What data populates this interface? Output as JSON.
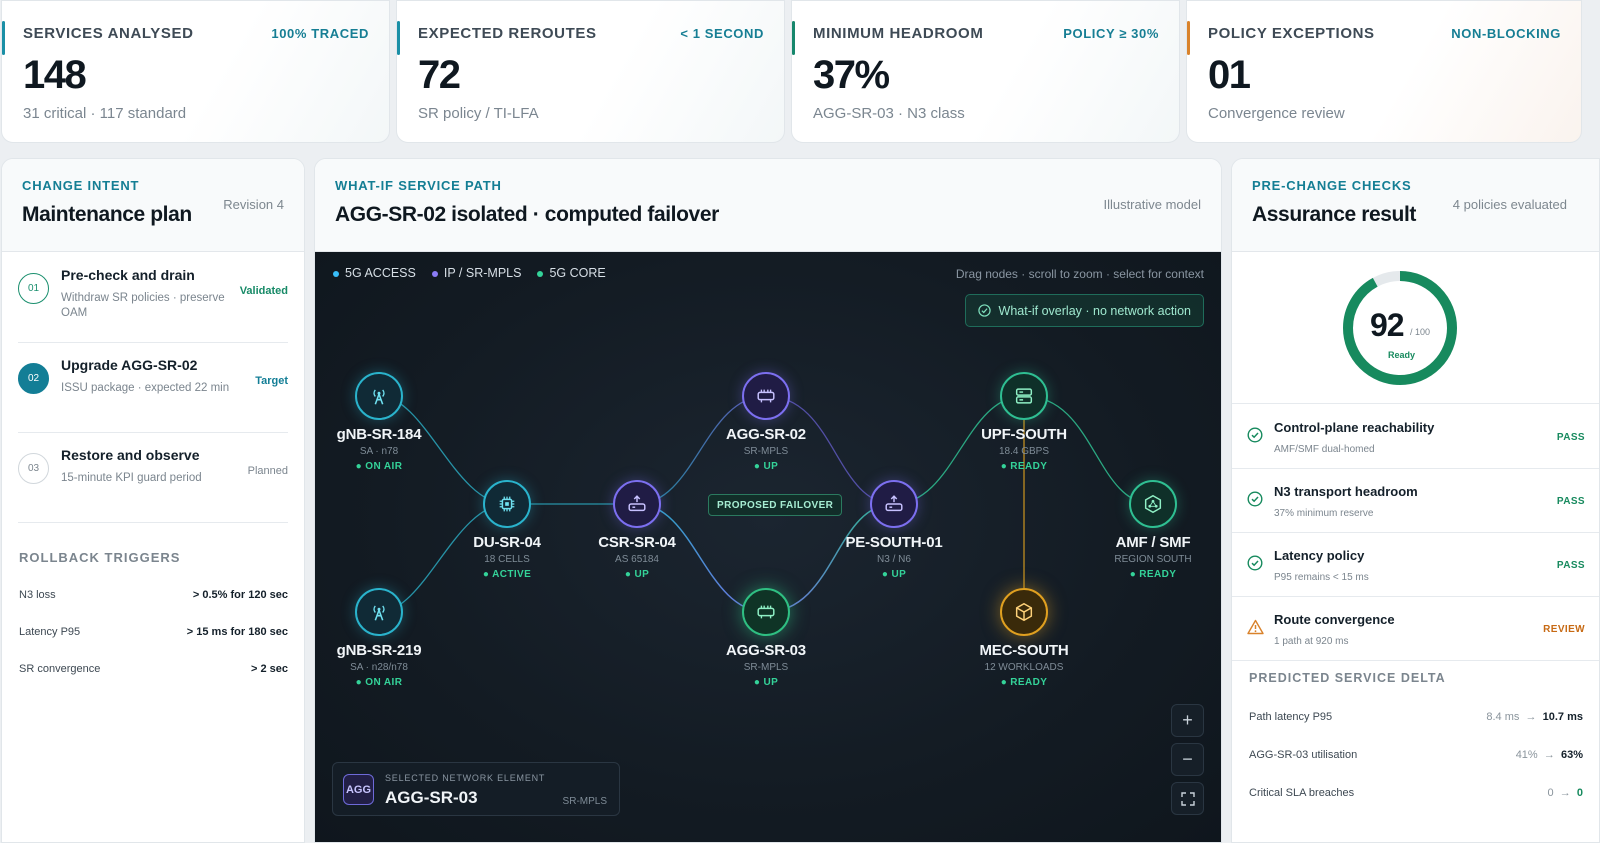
{
  "kpis": [
    {
      "label": "SERVICES ANALYSED",
      "tag": "100% TRACED",
      "value": "148",
      "sub": "31 critical · 117 standard",
      "color": "#1a8fa6"
    },
    {
      "label": "EXPECTED REROUTES",
      "tag": "< 1 SECOND",
      "value": "72",
      "sub": "SR policy / TI-LFA",
      "color": "#1a8fa6"
    },
    {
      "label": "MINIMUM HEADROOM",
      "tag": "POLICY ≥ 30%",
      "value": "37%",
      "sub": "AGG-SR-03 · N3 class",
      "color": "#16876c"
    },
    {
      "label": "POLICY EXCEPTIONS",
      "tag": "NON-BLOCKING",
      "value": "01",
      "sub": "Convergence review",
      "color": "#d9822b"
    }
  ],
  "left": {
    "eyebrow": "CHANGE INTENT",
    "title": "Maintenance plan",
    "meta": "Revision 4",
    "steps": [
      {
        "num": "01",
        "title": "Pre-check and drain",
        "desc": "Withdraw SR policies · preserve OAM",
        "status": "Validated",
        "state": "done"
      },
      {
        "num": "02",
        "title": "Upgrade AGG-SR-02",
        "desc": "ISSU package · expected 22 min",
        "status": "Target",
        "state": "active"
      },
      {
        "num": "03",
        "title": "Restore and observe",
        "desc": "15-minute KPI guard period",
        "status": "Planned",
        "state": "planned"
      }
    ],
    "rollback_title": "ROLLBACK TRIGGERS",
    "rollback": [
      {
        "k": "N3 loss",
        "v": "> 0.5% for 120 sec"
      },
      {
        "k": "Latency P95",
        "v": "> 15 ms for 180 sec"
      },
      {
        "k": "SR convergence",
        "v": "> 2 sec"
      }
    ]
  },
  "center": {
    "eyebrow": "WHAT-IF SERVICE PATH",
    "title": "AGG-SR-02 isolated · computed failover",
    "meta": "Illustrative model",
    "legend": [
      {
        "label": "5G ACCESS",
        "color": "#38bdf8"
      },
      {
        "label": "IP / SR-MPLS",
        "color": "#8b7cf6"
      },
      {
        "label": "5G CORE",
        "color": "#34d399"
      }
    ],
    "hint": "Drag nodes · scroll to zoom · select for context",
    "overlay": "What-if overlay · no network action",
    "failover_label": "PROPOSED FAILOVER",
    "nodes": {
      "gnb184": {
        "name": "gNB-SR-184",
        "sub": "SA · n78",
        "status": "● ON AIR"
      },
      "gnb219": {
        "name": "gNB-SR-219",
        "sub": "SA · n28/n78",
        "status": "● ON AIR"
      },
      "du": {
        "name": "DU-SR-04",
        "sub": "18 CELLS",
        "status": "● ACTIVE"
      },
      "csr": {
        "name": "CSR-SR-04",
        "sub": "AS 65184",
        "status": "● UP"
      },
      "agg02": {
        "name": "AGG-SR-02",
        "sub": "SR-MPLS",
        "status": "● UP"
      },
      "agg03": {
        "name": "AGG-SR-03",
        "sub": "SR-MPLS",
        "status": "● UP"
      },
      "pe": {
        "name": "PE-SOUTH-01",
        "sub": "N3 / N6",
        "status": "● UP"
      },
      "upf": {
        "name": "UPF-SOUTH",
        "sub": "18.4 GBPS",
        "status": "● READY"
      },
      "mec": {
        "name": "MEC-SOUTH",
        "sub": "12 WORKLOADS",
        "status": "● READY"
      },
      "amf": {
        "name": "AMF / SMF",
        "sub": "REGION SOUTH",
        "status": "● READY"
      }
    },
    "selected": {
      "caption": "SELECTED NETWORK ELEMENT",
      "badge": "AGG",
      "name": "AGG-SR-03",
      "type": "SR-MPLS"
    },
    "zoom": {
      "in": "+",
      "out": "−",
      "fit": "⛶"
    }
  },
  "right": {
    "eyebrow": "PRE-CHANGE CHECKS",
    "title": "Assurance result",
    "meta": "4 policies evaluated",
    "score": "92",
    "score_max": "/ 100",
    "score_fraction": 0.92,
    "score_label": "Ready",
    "checks": [
      {
        "title": "Control-plane reachability",
        "desc": "AMF/SMF dual-homed",
        "status": "PASS",
        "kind": "pass"
      },
      {
        "title": "N3 transport headroom",
        "desc": "37% minimum reserve",
        "status": "PASS",
        "kind": "pass"
      },
      {
        "title": "Latency policy",
        "desc": "P95 remains < 15 ms",
        "status": "PASS",
        "kind": "pass"
      },
      {
        "title": "Route convergence",
        "desc": "1 path at 920 ms",
        "status": "REVIEW",
        "kind": "review"
      }
    ],
    "delta_title": "PREDICTED SERVICE DELTA",
    "delta": [
      {
        "k": "Path latency P95",
        "from": "8.4 ms",
        "arrow": "→",
        "to": "10.7 ms"
      },
      {
        "k": "AGG-SR-03 utilisation",
        "from": "41%",
        "arrow": "→",
        "to": "63%"
      },
      {
        "k": "Critical SLA breaches",
        "from": "0",
        "arrow": "→",
        "to": "0"
      }
    ]
  }
}
